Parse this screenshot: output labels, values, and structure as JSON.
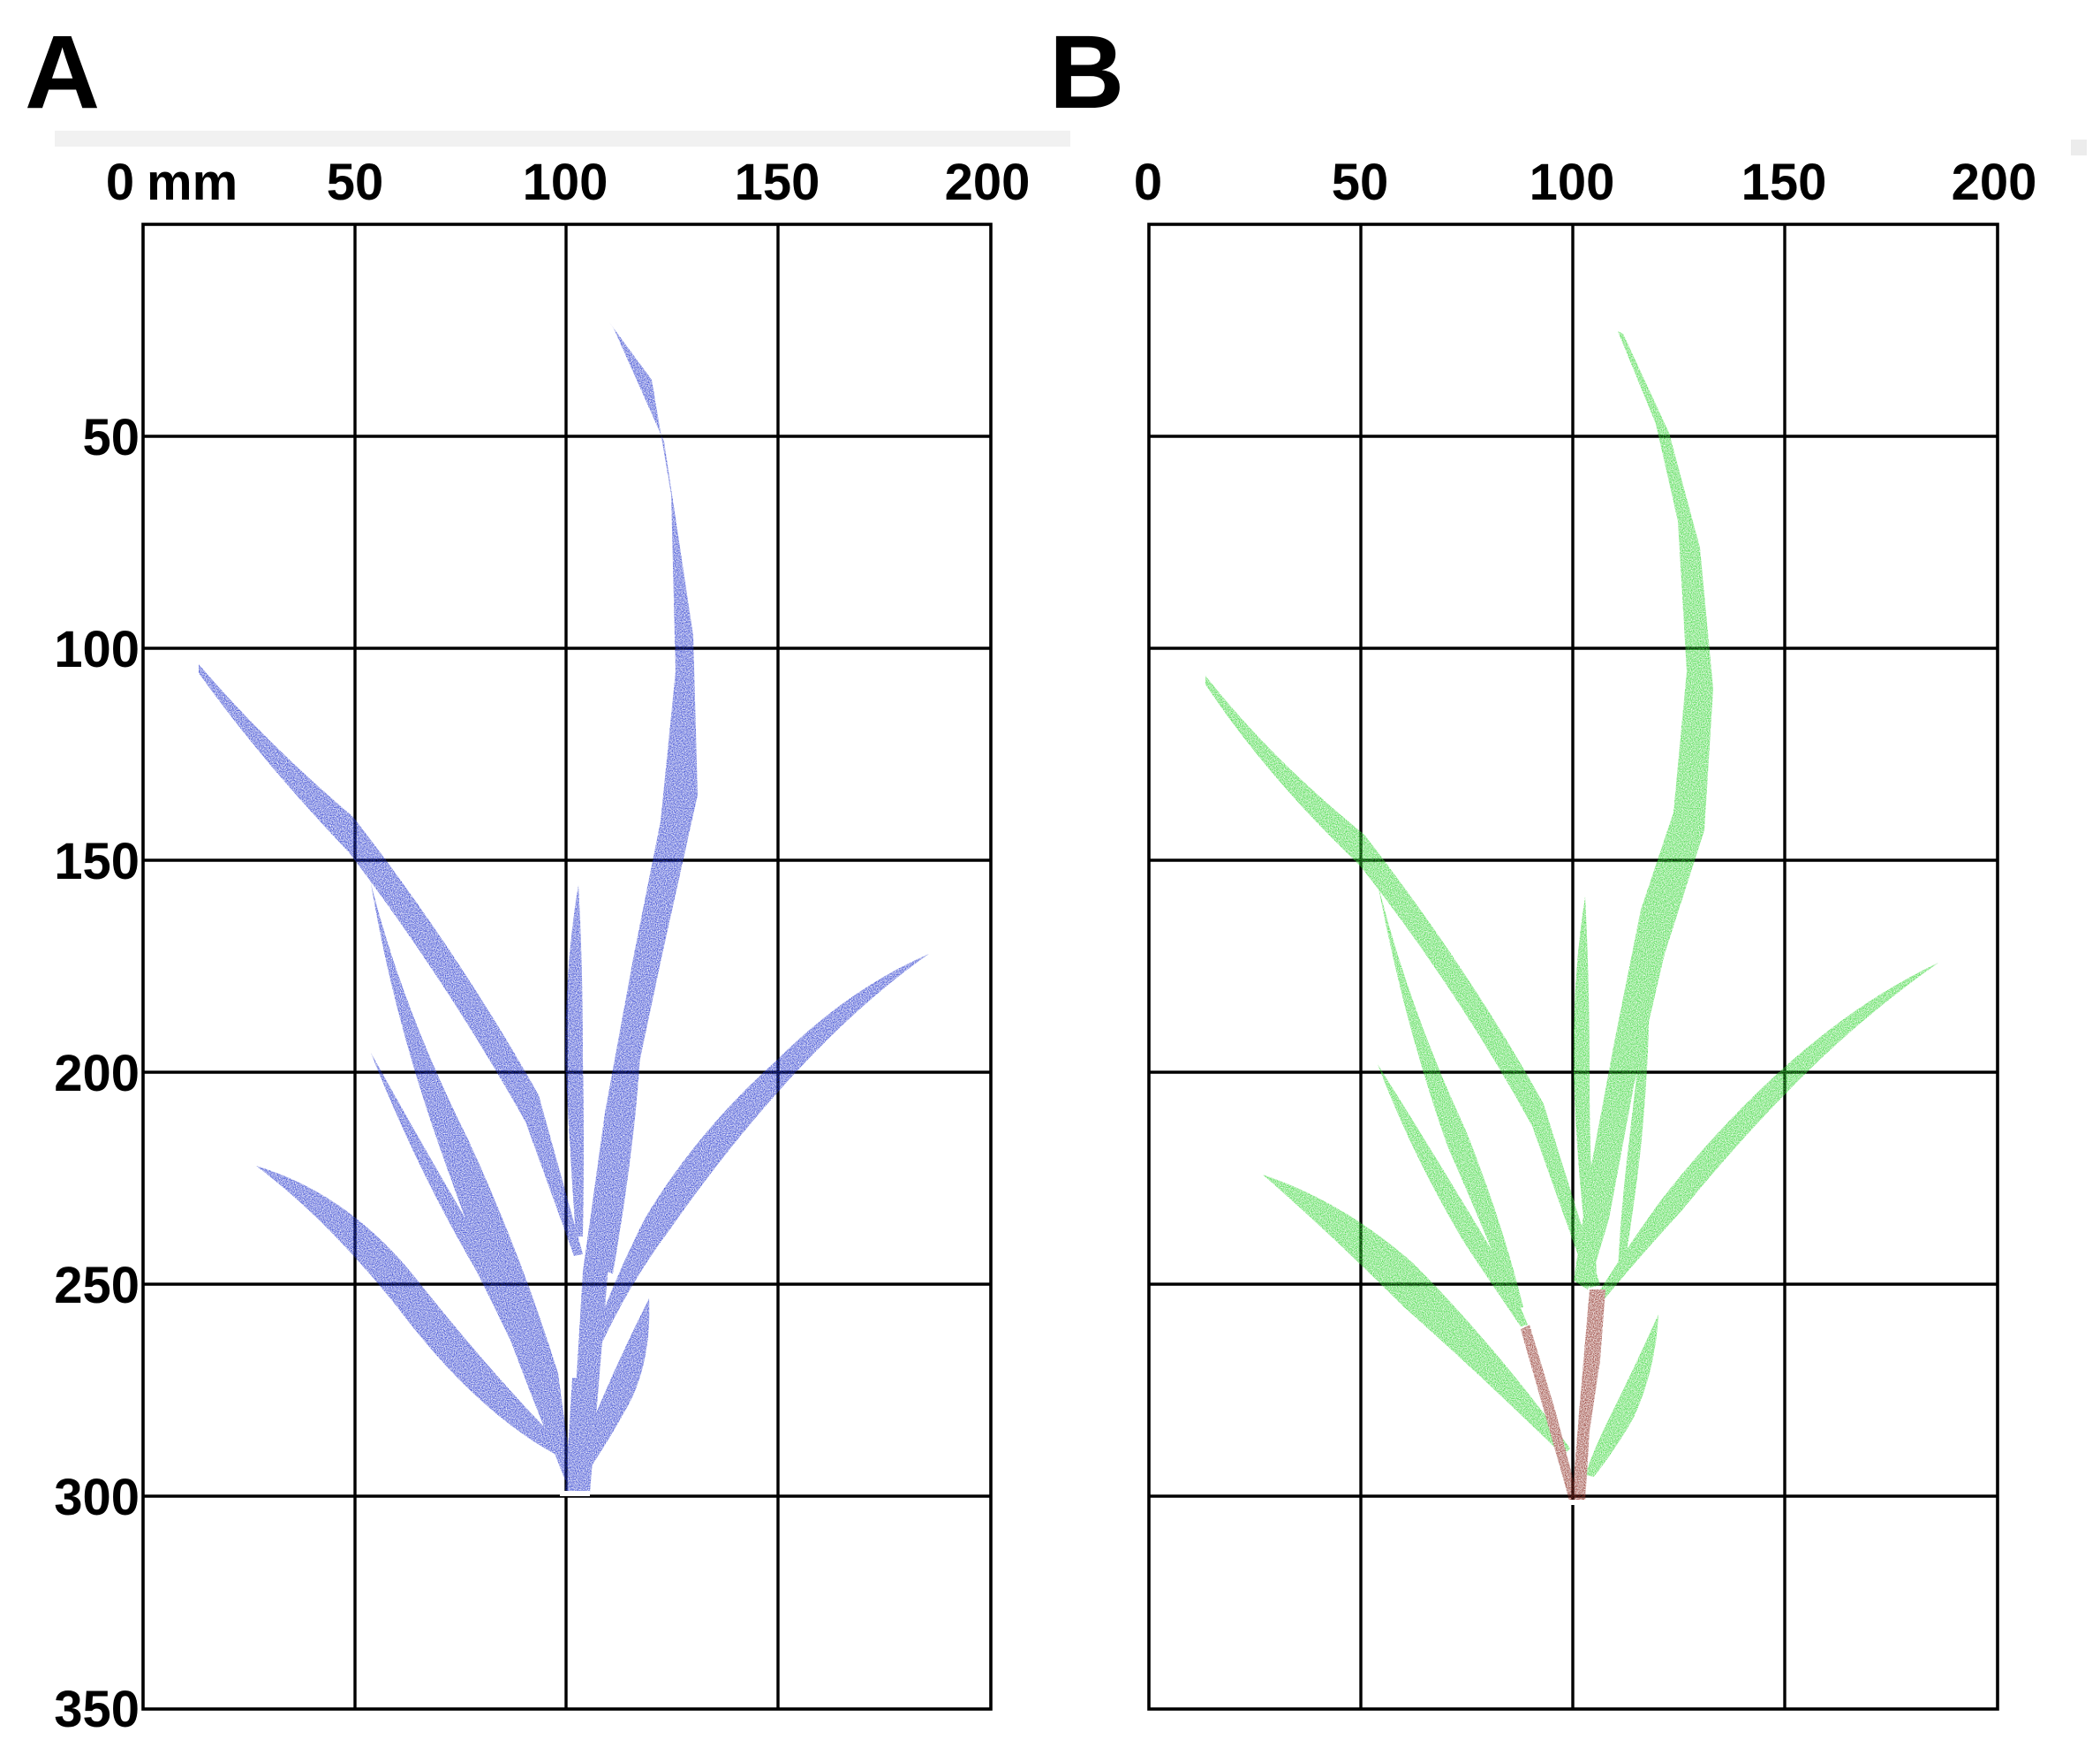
{
  "panels": [
    {
      "letter": "A",
      "x_unit": "mm",
      "x_ticks": [
        "0",
        "50",
        "100",
        "150",
        "200"
      ],
      "y_ticks": [
        "50",
        "100",
        "150",
        "200",
        "250",
        "300",
        "350"
      ],
      "leaf_color": "#2233cc",
      "stem_color": "#2233cc"
    },
    {
      "letter": "B",
      "x_unit": "",
      "x_ticks": [
        "0",
        "50",
        "100",
        "150",
        "200"
      ],
      "y_ticks": [],
      "leaf_color": "#33d633",
      "stem_color": "#8b2a20"
    }
  ],
  "x_range_mm": [
    0,
    200
  ],
  "y_range_mm": [
    0,
    350
  ],
  "grid_step_mm": 50
}
